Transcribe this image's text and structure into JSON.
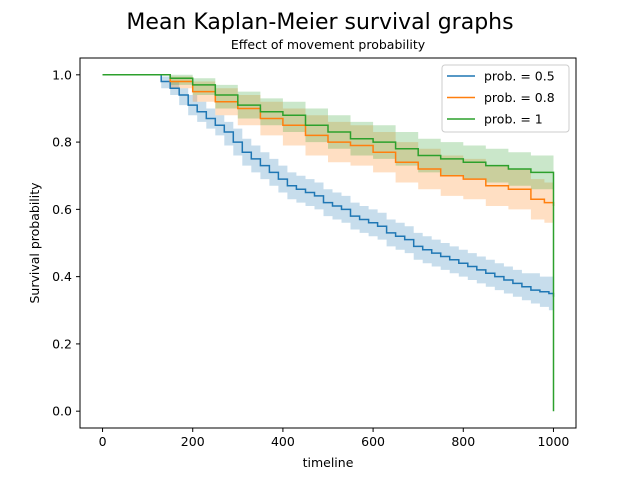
{
  "chart_data": {
    "type": "line",
    "title": "Mean Kaplan-Meier survival graphs",
    "subtitle": "Effect of movement probability",
    "xlabel": "timeline",
    "ylabel": "Survival probability",
    "xlim": [
      -50,
      1050
    ],
    "ylim": [
      -0.05,
      1.05
    ],
    "xticks": [
      0,
      200,
      400,
      600,
      800,
      1000
    ],
    "yticks": [
      0.0,
      0.2,
      0.4,
      0.6,
      0.8,
      1.0
    ],
    "xtick_labels": [
      "0",
      "200",
      "400",
      "600",
      "800",
      "1000"
    ],
    "ytick_labels": [
      "0.0",
      "0.2",
      "0.4",
      "0.6",
      "0.8",
      "1.0"
    ],
    "legend_position": "top-right",
    "grid": false,
    "series": [
      {
        "name": "prob. = 0.5",
        "color": "#1f77b4",
        "x": [
          0,
          112,
          130,
          150,
          170,
          190,
          210,
          230,
          250,
          270,
          290,
          310,
          330,
          350,
          370,
          390,
          410,
          430,
          450,
          470,
          490,
          510,
          530,
          550,
          570,
          590,
          610,
          630,
          650,
          670,
          690,
          710,
          730,
          750,
          770,
          790,
          810,
          830,
          850,
          870,
          890,
          910,
          930,
          950,
          970,
          990,
          1000
        ],
        "y": [
          1.0,
          1.0,
          0.98,
          0.96,
          0.94,
          0.91,
          0.89,
          0.87,
          0.85,
          0.83,
          0.8,
          0.77,
          0.75,
          0.73,
          0.71,
          0.69,
          0.67,
          0.66,
          0.65,
          0.64,
          0.62,
          0.61,
          0.6,
          0.58,
          0.57,
          0.56,
          0.55,
          0.53,
          0.52,
          0.51,
          0.49,
          0.48,
          0.47,
          0.46,
          0.45,
          0.44,
          0.43,
          0.42,
          0.41,
          0.4,
          0.39,
          0.38,
          0.37,
          0.36,
          0.355,
          0.35,
          0.34
        ],
        "lower": [
          1.0,
          1.0,
          0.96,
          0.94,
          0.91,
          0.88,
          0.86,
          0.84,
          0.82,
          0.79,
          0.76,
          0.73,
          0.71,
          0.69,
          0.67,
          0.65,
          0.63,
          0.62,
          0.61,
          0.6,
          0.58,
          0.57,
          0.56,
          0.54,
          0.53,
          0.52,
          0.51,
          0.49,
          0.48,
          0.47,
          0.45,
          0.44,
          0.43,
          0.42,
          0.41,
          0.4,
          0.39,
          0.38,
          0.37,
          0.36,
          0.35,
          0.34,
          0.33,
          0.32,
          0.31,
          0.3,
          0.29
        ],
        "upper": [
          1.0,
          1.0,
          0.995,
          0.98,
          0.96,
          0.94,
          0.92,
          0.9,
          0.88,
          0.86,
          0.84,
          0.81,
          0.79,
          0.77,
          0.75,
          0.73,
          0.71,
          0.7,
          0.69,
          0.68,
          0.66,
          0.65,
          0.64,
          0.62,
          0.61,
          0.6,
          0.59,
          0.57,
          0.56,
          0.55,
          0.53,
          0.52,
          0.51,
          0.5,
          0.49,
          0.48,
          0.47,
          0.46,
          0.45,
          0.44,
          0.43,
          0.42,
          0.41,
          0.41,
          0.4,
          0.4,
          0.4
        ]
      },
      {
        "name": "prob. = 0.8",
        "color": "#ff7f0e",
        "x": [
          0,
          112,
          150,
          200,
          250,
          300,
          350,
          400,
          450,
          500,
          550,
          600,
          650,
          700,
          750,
          800,
          850,
          900,
          950,
          980,
          1000
        ],
        "y": [
          1.0,
          1.0,
          0.98,
          0.95,
          0.92,
          0.9,
          0.87,
          0.85,
          0.82,
          0.8,
          0.79,
          0.77,
          0.74,
          0.72,
          0.7,
          0.69,
          0.67,
          0.66,
          0.63,
          0.62,
          0.61
        ],
        "lower": [
          1.0,
          1.0,
          0.96,
          0.92,
          0.88,
          0.85,
          0.82,
          0.79,
          0.76,
          0.74,
          0.73,
          0.71,
          0.68,
          0.66,
          0.64,
          0.63,
          0.61,
          0.6,
          0.57,
          0.56,
          0.55
        ],
        "upper": [
          1.0,
          1.0,
          0.995,
          0.98,
          0.96,
          0.94,
          0.92,
          0.9,
          0.88,
          0.86,
          0.85,
          0.83,
          0.8,
          0.78,
          0.76,
          0.75,
          0.73,
          0.72,
          0.69,
          0.68,
          0.67
        ]
      },
      {
        "name": "prob. = 1",
        "color": "#2ca02c",
        "x": [
          0,
          112,
          150,
          200,
          250,
          300,
          350,
          400,
          450,
          500,
          550,
          600,
          650,
          700,
          750,
          800,
          850,
          900,
          950,
          1000
        ],
        "y": [
          1.0,
          1.0,
          0.99,
          0.97,
          0.94,
          0.91,
          0.89,
          0.88,
          0.85,
          0.83,
          0.81,
          0.8,
          0.78,
          0.76,
          0.75,
          0.74,
          0.73,
          0.72,
          0.71,
          0.7
        ],
        "lower": [
          1.0,
          1.0,
          0.97,
          0.94,
          0.9,
          0.87,
          0.85,
          0.83,
          0.8,
          0.78,
          0.76,
          0.75,
          0.73,
          0.71,
          0.7,
          0.69,
          0.68,
          0.67,
          0.66,
          0.64
        ],
        "upper": [
          1.0,
          1.0,
          1.0,
          0.99,
          0.97,
          0.95,
          0.93,
          0.92,
          0.9,
          0.88,
          0.86,
          0.85,
          0.83,
          0.81,
          0.8,
          0.79,
          0.78,
          0.77,
          0.76,
          0.75
        ],
        "final_drop_to": 0.0
      }
    ]
  }
}
